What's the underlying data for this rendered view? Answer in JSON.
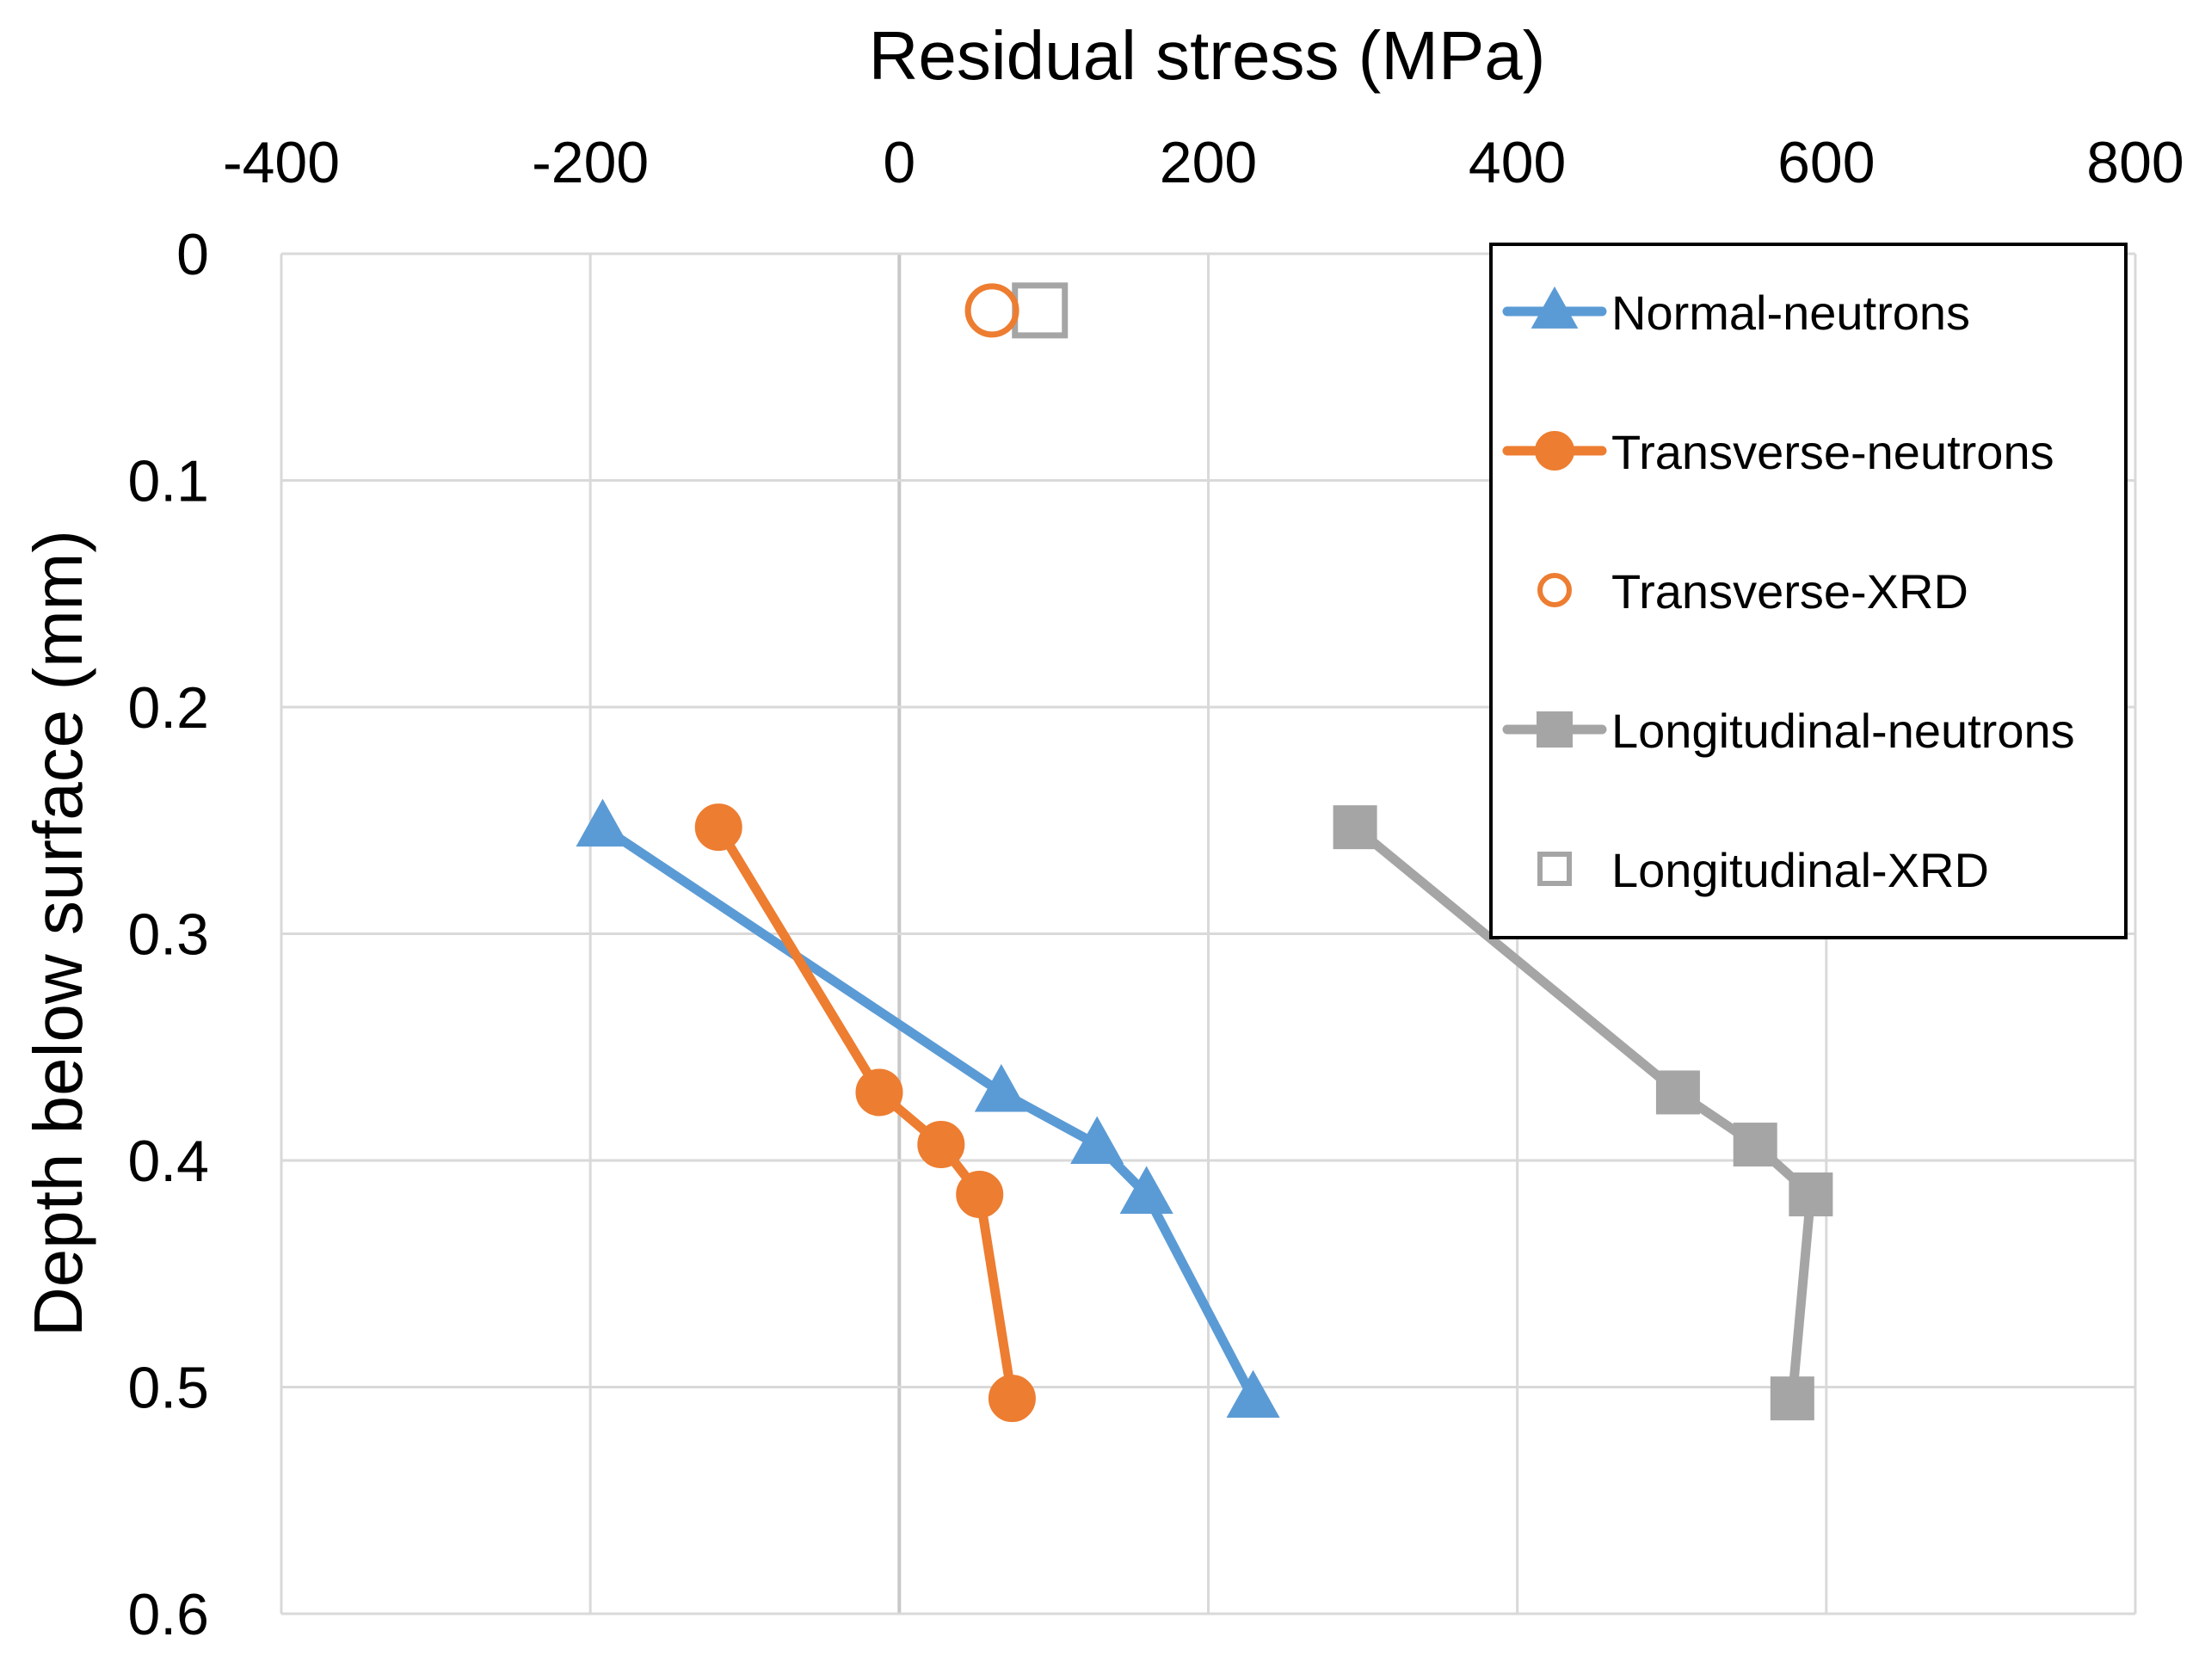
{
  "chart_data": {
    "type": "scatter",
    "title": "",
    "xlabel": "Residual stress (MPa)",
    "ylabel": "Depth below surface (mm)",
    "xlim": [
      -400,
      800
    ],
    "ylim": [
      0,
      0.6
    ],
    "y_reversed": true,
    "x_axis_position": "top",
    "x_ticks": [
      -400,
      -200,
      0,
      200,
      400,
      600,
      800
    ],
    "x_tick_labels": [
      "-400",
      "-200",
      "0",
      "200",
      "400",
      "600",
      "800"
    ],
    "y_ticks": [
      0,
      0.1,
      0.2,
      0.3,
      0.4,
      0.5,
      0.6
    ],
    "y_tick_labels": [
      "0",
      "0.1",
      "0.2",
      "0.3",
      "0.4",
      "0.5",
      "0.6"
    ],
    "grid": true,
    "legend_position": "top-right",
    "series": [
      {
        "name": "Normal-neutrons",
        "color": "#5B9BD5",
        "marker": "triangle",
        "filled": true,
        "line": true,
        "x": [
          -192,
          66,
          128,
          160,
          229
        ],
        "y": [
          0.253,
          0.37,
          0.393,
          0.415,
          0.505
        ]
      },
      {
        "name": "Transverse-neutrons",
        "color": "#ED7D31",
        "marker": "circle",
        "filled": true,
        "line": true,
        "x": [
          -117,
          -13,
          27,
          52,
          73
        ],
        "y": [
          0.253,
          0.37,
          0.393,
          0.415,
          0.505
        ]
      },
      {
        "name": "Transverse-XRD",
        "color": "#ED7D31",
        "marker": "circle",
        "filled": false,
        "line": false,
        "x": [
          60
        ],
        "y": [
          0.025
        ]
      },
      {
        "name": "Longitudinal-neutrons",
        "color": "#A5A5A5",
        "marker": "square",
        "filled": true,
        "line": true,
        "x": [
          295,
          504,
          554,
          590,
          578
        ],
        "y": [
          0.253,
          0.37,
          0.393,
          0.415,
          0.505
        ]
      },
      {
        "name": "Longitudinal-XRD",
        "color": "#A5A5A5",
        "marker": "square",
        "filled": false,
        "line": false,
        "x": [
          91
        ],
        "y": [
          0.025
        ]
      }
    ]
  }
}
